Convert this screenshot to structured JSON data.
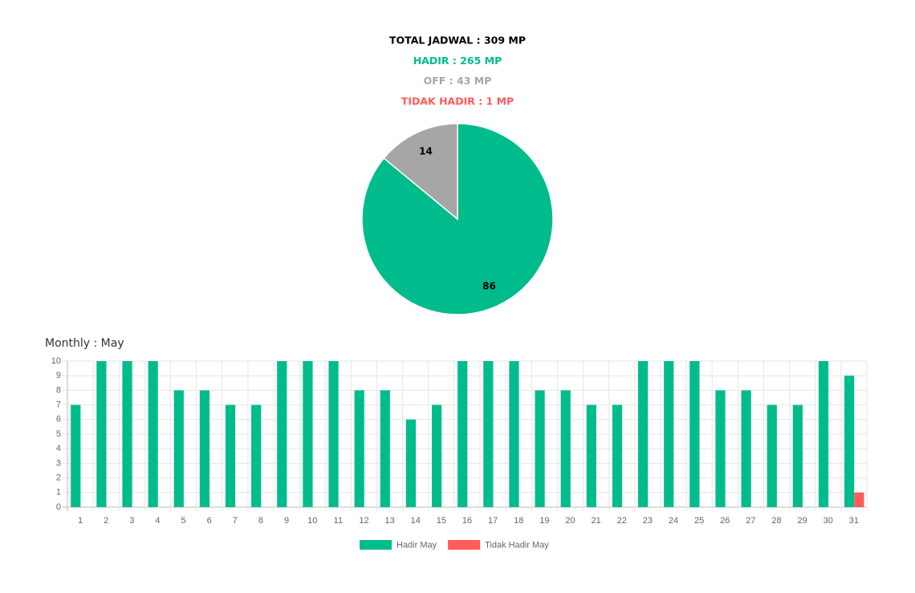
{
  "summary": [
    {
      "text": "TOTAL JADWAL : 309 MP",
      "color": "#000000"
    },
    {
      "text": "HADIR : 265 MP",
      "color": "#00bc8c"
    },
    {
      "text": "OFF : 43 MP",
      "color": "#a6a6a6"
    },
    {
      "text": "TIDAK HADIR : 1 MP",
      "color": "#ff5b5b"
    }
  ],
  "chart_data": [
    {
      "type": "pie",
      "values": [
        86,
        14
      ],
      "colors": [
        "#00bc8c",
        "#a6a6a6"
      ]
    },
    {
      "type": "bar",
      "title": "Monthly : May",
      "categories": [
        "1",
        "2",
        "3",
        "4",
        "5",
        "6",
        "7",
        "8",
        "9",
        "10",
        "11",
        "12",
        "13",
        "14",
        "15",
        "16",
        "17",
        "18",
        "19",
        "20",
        "21",
        "22",
        "23",
        "24",
        "25",
        "26",
        "27",
        "28",
        "29",
        "30",
        "31"
      ],
      "series": [
        {
          "name": "Hadir May",
          "color": "#00bc8c",
          "values": [
            7,
            10,
            10,
            10,
            8,
            8,
            7,
            7,
            10,
            10,
            10,
            8,
            8,
            6,
            7,
            10,
            10,
            10,
            8,
            8,
            7,
            7,
            10,
            10,
            10,
            8,
            8,
            7,
            7,
            10,
            9
          ]
        },
        {
          "name": "Tidak Hadir May",
          "color": "#ff5b5b",
          "values": [
            0,
            0,
            0,
            0,
            0,
            0,
            0,
            0,
            0,
            0,
            0,
            0,
            0,
            0,
            0,
            0,
            0,
            0,
            0,
            0,
            0,
            0,
            0,
            0,
            0,
            0,
            0,
            0,
            0,
            0,
            1
          ]
        }
      ],
      "ylim": [
        0,
        10
      ],
      "yticks": [
        0,
        1,
        2,
        3,
        4,
        5,
        6,
        7,
        8,
        9,
        10
      ],
      "grid": true
    }
  ]
}
